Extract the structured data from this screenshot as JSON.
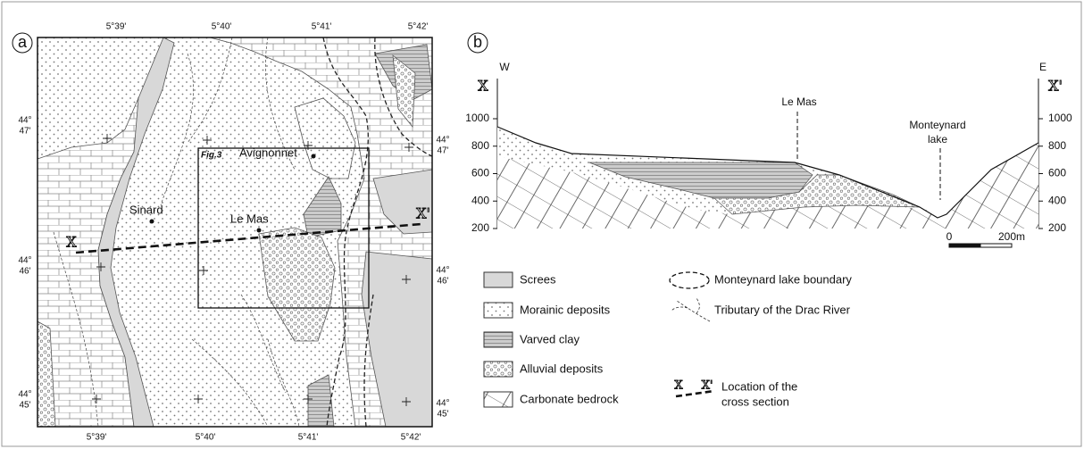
{
  "panel_a": {
    "label": "a",
    "lon_top": [
      "5°39'",
      "5°40'",
      "5°41'",
      "5°42'"
    ],
    "lon_bottom": [
      "5°39'",
      "5°40'",
      "5°41'",
      "5°42'"
    ],
    "lat_left": [
      {
        "deg": "44°",
        "min": "47'"
      },
      {
        "deg": "44°",
        "min": "46'"
      },
      {
        "deg": "44°",
        "min": "45'"
      }
    ],
    "lat_right": [
      {
        "deg": "44°",
        "min": "47'"
      },
      {
        "deg": "44°",
        "min": "46'"
      },
      {
        "deg": "44°",
        "min": "45'"
      }
    ],
    "places": {
      "sinard": "Sinard",
      "le_mas": "Le Mas",
      "avignonnet": "Avignonnet"
    },
    "inset_label": "Fig.3",
    "section_start": "X",
    "section_end": "X'"
  },
  "panel_b": {
    "label": "b",
    "west": "W",
    "east": "E",
    "section_start": "X",
    "section_end": "X'",
    "elevations_left": [
      1000,
      800,
      600,
      400,
      200
    ],
    "elevations_right": [
      1000,
      800,
      600,
      400,
      200
    ],
    "le_mas": "Le Mas",
    "lake": [
      "Monteynard",
      "lake"
    ],
    "scale": [
      "0",
      "200m"
    ]
  },
  "legend": {
    "items": [
      "Screes",
      "Morainic deposits",
      "Varved clay",
      "Alluvial deposits",
      "Carbonate bedrock"
    ],
    "lake_boundary": "Monteynard lake boundary",
    "tributary": "Tributary of the Drac River",
    "section_symbol": [
      "X",
      "X'"
    ],
    "section": [
      "Location of the",
      "cross section"
    ]
  }
}
